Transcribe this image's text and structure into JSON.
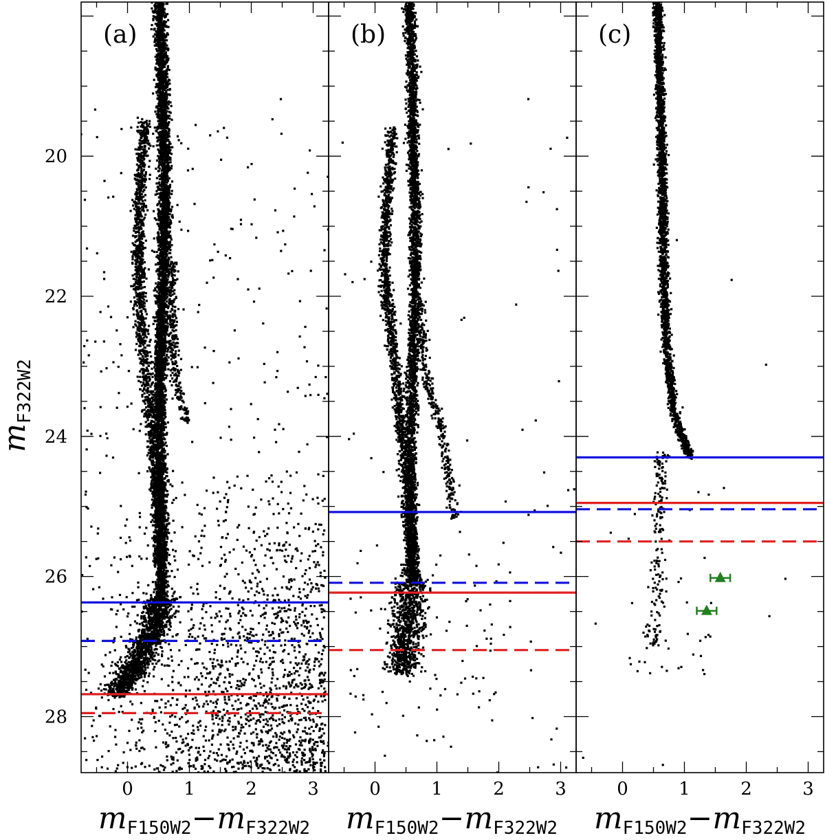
{
  "chart_data": [
    {
      "type": "scatter",
      "panel_label": "(a)",
      "ylabel": "m",
      "ylabel_sub": "F322W2",
      "xlabel": "m",
      "xlabel_sub1": "F150W2",
      "xlabel_sep": "−m",
      "xlabel_sub2": "F322W2",
      "xlim": [
        -0.75,
        3.25
      ],
      "ylim": [
        28.8,
        17.8
      ],
      "y_inverted": true,
      "xticks": [
        0,
        1,
        2,
        3
      ],
      "xtick_labels": [
        "0",
        "1",
        "2",
        "3"
      ],
      "yticks": [
        20,
        22,
        24,
        26,
        28
      ],
      "ytick_labels": [
        "20",
        "22",
        "24",
        "26",
        "28"
      ],
      "sequences": [
        {
          "name": "main",
          "points": [
            [
              0.52,
              17.8
            ],
            [
              0.55,
              18.5
            ],
            [
              0.58,
              19.5
            ],
            [
              0.6,
              20.5
            ],
            [
              0.58,
              21.5
            ],
            [
              0.55,
              22.5
            ],
            [
              0.52,
              23.5
            ],
            [
              0.52,
              24.5
            ],
            [
              0.55,
              25.5
            ],
            [
              0.55,
              26.3
            ]
          ],
          "count": 5000,
          "spread": 0.05
        },
        {
          "name": "blue-branch",
          "points": [
            [
              0.28,
              19.5
            ],
            [
              0.2,
              20.5
            ],
            [
              0.18,
              21.5
            ],
            [
              0.2,
              22.3
            ],
            [
              0.3,
              23.2
            ],
            [
              0.4,
              24.0
            ],
            [
              0.48,
              25.0
            ],
            [
              0.52,
              25.8
            ]
          ],
          "count": 1600,
          "spread": 0.05
        },
        {
          "name": "red-branch",
          "points": [
            [
              0.72,
              21.5
            ],
            [
              0.72,
              22.5
            ],
            [
              0.78,
              23.2
            ],
            [
              0.95,
              23.8
            ]
          ],
          "count": 300,
          "spread": 0.04
        },
        {
          "name": "lower-ms",
          "points": [
            [
              0.55,
              26.3
            ],
            [
              0.4,
              26.8
            ],
            [
              0.25,
              27.1
            ],
            [
              0.05,
              27.4
            ],
            [
              -0.2,
              27.7
            ]
          ],
          "count": 1400,
          "spread": 0.12
        }
      ],
      "field": {
        "count": 1500,
        "x": [
          -0.6,
          3.2
        ],
        "y": [
          24.6,
          28.8
        ],
        "bias_x": 1.0
      },
      "scatter_noise": {
        "count": 450
      },
      "limits": [
        {
          "style": "solid",
          "color": "#1010e0",
          "y": 26.37
        },
        {
          "style": "dashed",
          "color": "#1010e0",
          "y": 26.92
        },
        {
          "style": "solid",
          "color": "#e02020",
          "y": 27.68
        },
        {
          "style": "dashed",
          "color": "#e02020",
          "y": 27.95
        }
      ],
      "special_points": []
    },
    {
      "type": "scatter",
      "panel_label": "(b)",
      "xlabel": "m",
      "xlabel_sub1": "F150W2",
      "xlabel_sep": "−m",
      "xlabel_sub2": "F322W2",
      "xlim": [
        -0.75,
        3.25
      ],
      "ylim": [
        28.8,
        17.8
      ],
      "y_inverted": true,
      "xticks": [
        0,
        1,
        2,
        3
      ],
      "xtick_labels": [
        "0",
        "1",
        "2",
        "3"
      ],
      "yticks": [
        20,
        22,
        24,
        26,
        28
      ],
      "sequences": [
        {
          "name": "main",
          "points": [
            [
              0.55,
              17.8
            ],
            [
              0.6,
              18.8
            ],
            [
              0.62,
              19.8
            ],
            [
              0.65,
              20.8
            ],
            [
              0.65,
              21.8
            ],
            [
              0.62,
              22.8
            ],
            [
              0.58,
              23.8
            ],
            [
              0.58,
              24.8
            ],
            [
              0.6,
              25.5
            ],
            [
              0.62,
              26.1
            ]
          ],
          "count": 3200,
          "spread": 0.045
        },
        {
          "name": "blue-branch",
          "points": [
            [
              0.28,
              19.6
            ],
            [
              0.2,
              20.6
            ],
            [
              0.15,
              21.4
            ],
            [
              0.18,
              22.0
            ],
            [
              0.3,
              22.8
            ],
            [
              0.42,
              23.8
            ],
            [
              0.5,
              24.6
            ],
            [
              0.55,
              25.4
            ],
            [
              0.55,
              26.0
            ]
          ],
          "count": 1600,
          "spread": 0.045
        },
        {
          "name": "red-branch",
          "points": [
            [
              0.72,
              22.0
            ],
            [
              0.8,
              23.0
            ],
            [
              0.9,
              23.4
            ],
            [
              1.05,
              23.8
            ],
            [
              1.18,
              24.5
            ],
            [
              1.3,
              25.2
            ]
          ],
          "count": 350,
          "spread": 0.04
        },
        {
          "name": "lower-ms",
          "points": [
            [
              0.62,
              26.0
            ],
            [
              0.55,
              26.4
            ],
            [
              0.5,
              26.9
            ],
            [
              0.45,
              27.4
            ]
          ],
          "count": 900,
          "spread": 0.13
        }
      ],
      "field": {
        "count": 60,
        "x": [
          -0.4,
          2.2
        ],
        "y": [
          25.0,
          28.0
        ],
        "bias_x": 0.3
      },
      "scatter_noise": {
        "count": 80
      },
      "limits": [
        {
          "style": "solid",
          "color": "#1010e0",
          "y": 25.08
        },
        {
          "style": "dashed",
          "color": "#1010e0",
          "y": 26.09
        },
        {
          "style": "solid",
          "color": "#e02020",
          "y": 26.23
        },
        {
          "style": "dashed",
          "color": "#e02020",
          "y": 27.05
        }
      ],
      "special_points": []
    },
    {
      "type": "scatter",
      "panel_label": "(c)",
      "xlabel": "m",
      "xlabel_sub1": "F150W2",
      "xlabel_sep": "−m",
      "xlabel_sub2": "F322W2",
      "xlim": [
        -0.75,
        3.25
      ],
      "ylim": [
        28.8,
        17.8
      ],
      "y_inverted": true,
      "xticks": [
        0,
        1,
        2,
        3
      ],
      "xtick_labels": [
        "0",
        "1",
        "2",
        "3"
      ],
      "yticks": [
        20,
        22,
        24,
        26,
        28
      ],
      "sequences": [
        {
          "name": "main",
          "points": [
            [
              0.57,
              17.8
            ],
            [
              0.6,
              18.8
            ],
            [
              0.63,
              19.8
            ],
            [
              0.65,
              20.8
            ],
            [
              0.67,
              21.8
            ],
            [
              0.72,
              22.8
            ],
            [
              0.82,
              23.6
            ],
            [
              0.95,
              24.0
            ],
            [
              1.1,
              24.3
            ]
          ],
          "count": 2600,
          "spread": 0.035
        },
        {
          "name": "lower-ms",
          "points": [
            [
              0.65,
              24.2
            ],
            [
              0.6,
              25.0
            ],
            [
              0.6,
              25.6
            ],
            [
              0.55,
              26.3
            ],
            [
              0.5,
              27.0
            ]
          ],
          "count": 180,
          "spread": 0.06
        }
      ],
      "field": {
        "count": 40,
        "x": [
          -0.3,
          1.5
        ],
        "y": [
          24.3,
          27.4
        ],
        "bias_x": 0.5
      },
      "scatter_noise": {
        "count": 10
      },
      "limits": [
        {
          "style": "solid",
          "color": "#1010e0",
          "y": 24.3
        },
        {
          "style": "dashed",
          "color": "#1010e0",
          "y": 25.04
        },
        {
          "style": "solid",
          "color": "#e02020",
          "y": 24.95
        },
        {
          "style": "dashed",
          "color": "#e02020",
          "y": 25.5
        }
      ],
      "special_points": [
        {
          "x": 1.58,
          "y": 26.02,
          "xerr": 0.16,
          "marker": "triangle",
          "color": "#208020"
        },
        {
          "x": 1.36,
          "y": 26.49,
          "xerr": 0.16,
          "marker": "triangle",
          "color": "#208020"
        }
      ]
    }
  ]
}
